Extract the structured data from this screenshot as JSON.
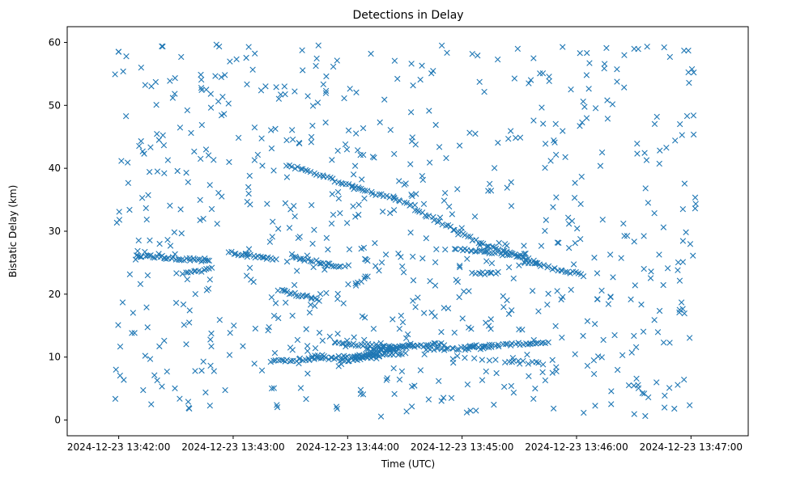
{
  "chart_data": {
    "type": "scatter",
    "title": "Detections in Delay",
    "xlabel": "Time (UTC)",
    "ylabel": "Bistatic Delay (km)",
    "marker": "x",
    "color": "#1f77b4",
    "grid": false,
    "legend": "none",
    "x_units": "seconds after 2024-12-23 13:42:00",
    "xlim": [
      -27,
      330
    ],
    "ylim": [
      -2.5,
      62.5
    ],
    "x_ticks": [
      0,
      60,
      120,
      180,
      240,
      300
    ],
    "x_tick_labels": [
      "2024-12-23 13:42:00",
      "2024-12-23 13:43:00",
      "2024-12-23 13:44:00",
      "2024-12-23 13:45:00",
      "2024-12-23 13:46:00",
      "2024-12-23 13:47:00"
    ],
    "y_ticks": [
      0,
      10,
      20,
      30,
      40,
      50,
      60
    ],
    "y_tick_labels": [
      "0",
      "10",
      "20",
      "30",
      "40",
      "50",
      "60"
    ],
    "tracks": [
      {
        "x": [
          9,
          47
        ],
        "y": [
          26.2,
          25.3
        ]
      },
      {
        "x": [
          34,
          49
        ],
        "y": [
          23.2,
          24.0
        ]
      },
      {
        "x": [
          58,
          82
        ],
        "y": [
          26.6,
          25.6
        ]
      },
      {
        "x": [
          84,
          104
        ],
        "y": [
          20.6,
          19.2
        ]
      },
      {
        "x": [
          91,
          112
        ],
        "y": [
          25.8,
          24.7
        ]
      },
      {
        "x": [
          112,
          120
        ],
        "y": [
          24.6,
          24.4
        ]
      },
      {
        "x": [
          124,
          131
        ],
        "y": [
          21.5,
          23.0
        ]
      },
      {
        "x": [
          80,
          150
        ],
        "y": [
          9.3,
          10.6
        ]
      },
      {
        "x": [
          101,
          108
        ],
        "y": [
          10.3,
          10.3
        ]
      },
      {
        "x": [
          114,
          146
        ],
        "y": [
          12.2,
          11.6
        ]
      },
      {
        "x": [
          116,
          136
        ],
        "y": [
          9.4,
          10.0
        ]
      },
      {
        "x": [
          124,
          154
        ],
        "y": [
          10.0,
          12.0
        ]
      },
      {
        "x": [
          130,
          170
        ],
        "y": [
          11.1,
          12.1
        ]
      },
      {
        "x": [
          161,
          195
        ],
        "y": [
          11.2,
          11.5
        ]
      },
      {
        "x": [
          178,
          210
        ],
        "y": [
          10.0,
          9.0
        ]
      },
      {
        "x": [
          181,
          225
        ],
        "y": [
          11.6,
          12.3
        ]
      },
      {
        "x": [
          205,
          222
        ],
        "y": [
          9.3,
          9.0
        ]
      },
      {
        "x": [
          88,
          155
        ],
        "y": [
          40.6,
          34.0
        ]
      },
      {
        "x": [
          155,
          194
        ],
        "y": [
          33.5,
          27.5
        ]
      },
      {
        "x": [
          194,
          220
        ],
        "y": [
          27.5,
          25.0
        ]
      },
      {
        "x": [
          212,
          244
        ],
        "y": [
          25.2,
          23.0
        ]
      },
      {
        "x": [
          176,
          212
        ],
        "y": [
          27.3,
          26.0
        ]
      },
      {
        "x": [
          185,
          199
        ],
        "y": [
          23.2,
          23.4
        ]
      }
    ],
    "track_n": [
      34,
      12,
      22,
      18,
      20,
      6,
      6,
      60,
      5,
      26,
      16,
      24,
      36,
      26,
      9,
      34,
      8,
      48,
      30,
      20,
      24,
      28,
      9
    ],
    "scatter_n": 720,
    "x_scatter_range": [
      -3,
      303
    ],
    "y_scatter_range": [
      0.5,
      59.7
    ]
  }
}
